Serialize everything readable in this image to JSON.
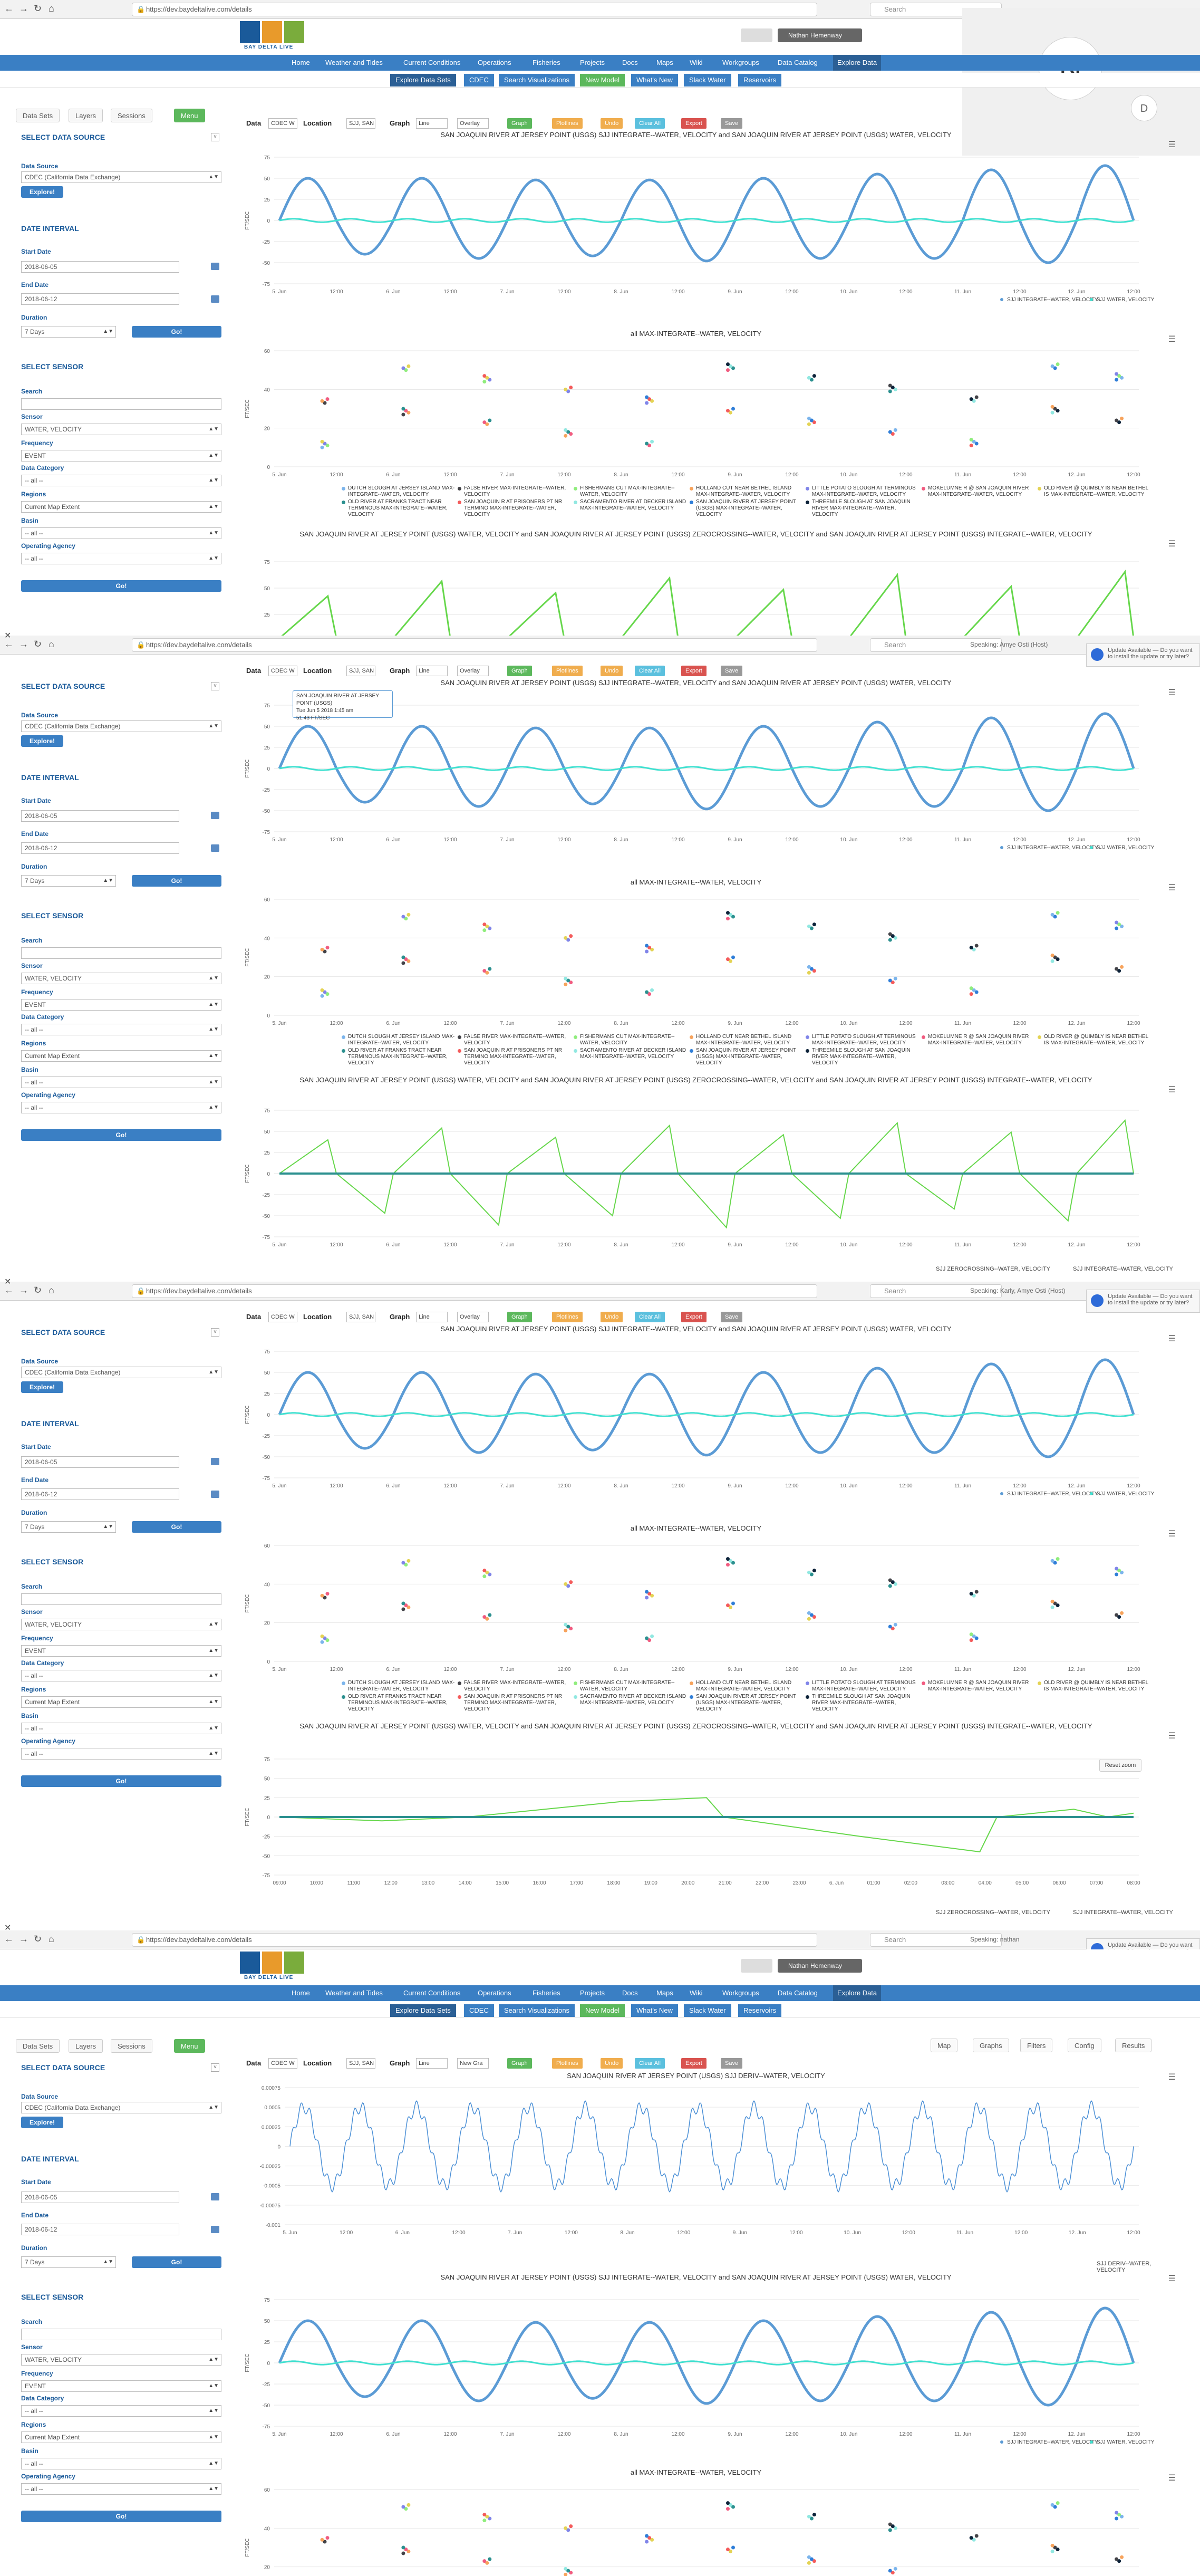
{
  "browser": {
    "url": "https://dev.baydeltalive.com/details",
    "search_placeholder": "Search",
    "speaking": [
      "",
      "Speaking: Amye Osti (Host)",
      "Speaking: Karly, Amye Osti (Host)",
      "Speaking: nathan"
    ]
  },
  "site": {
    "logo_text": "BAY DELTA LIVE",
    "user": "Nathan Hemenway",
    "nav": [
      "Home",
      "Weather and Tides",
      "Current Conditions",
      "Operations",
      "Fisheries",
      "Projects",
      "Docs",
      "Maps",
      "Wiki",
      "Workgroups",
      "Data Catalog",
      "Explore Data"
    ],
    "subnav": [
      "Explore Data Sets",
      "CDEC",
      "Search Visualizations",
      "New Model",
      "What's New",
      "Slack Water",
      "Reservoirs"
    ]
  },
  "overlay": {
    "avatar_big": "N",
    "avatar_small": "D",
    "map_label": "Map",
    "name_label": "nathan"
  },
  "notification": {
    "text": "Update Available — Do you want to install the update or try later?"
  },
  "sidebar": {
    "tabs": [
      "Data Sets",
      "Layers",
      "Sessions",
      "Menu"
    ],
    "select_data_source": "SELECT DATA SOURCE",
    "data_source_label": "Data Source",
    "data_source_value": "CDEC (California Data Exchange)",
    "explore_button": "Explore!",
    "date_interval": "DATE INTERVAL",
    "start_date_label": "Start Date",
    "start_date": "2018-06-05",
    "end_date_label": "End Date",
    "end_date": "2018-06-12",
    "duration_label": "Duration",
    "duration": "7 Days",
    "go_button": "Go!",
    "select_sensor": "SELECT SENSOR",
    "search_label": "Search",
    "sensor_label": "Sensor",
    "sensor_value": "WATER, VELOCITY",
    "frequency_label": "Frequency",
    "frequency_value": "EVENT",
    "data_category_label": "Data Category",
    "data_category_value": "-- all --",
    "regions_label": "Regions",
    "regions_value": "Current Map Extent",
    "basin_label": "Basin",
    "basin_value": "-- all --",
    "operating_agency_label": "Operating Agency",
    "operating_agency_value": "-- all --",
    "go_button2": "Go!"
  },
  "toolbar": {
    "data_label": "Data",
    "data_value": "CDEC W",
    "location_label": "Location",
    "location_value": "SJJ, SAN",
    "graph_label": "Graph",
    "graph_value": "Line",
    "overlay_value": "Overlay",
    "new_graph_value": "New Gra",
    "buttons": [
      "Graph",
      "Plotlines",
      "Undo",
      "Clear All",
      "Export",
      "Save"
    ]
  },
  "map_tabs": [
    "Map",
    "Graphs",
    "Filters",
    "Config",
    "Results"
  ],
  "charts": {
    "velocity_title": "SAN JOAQUIN RIVER AT JERSEY POINT (USGS) SJJ INTEGRATE--WATER, VELOCITY and SAN JOAQUIN RIVER AT JERSEY POINT (USGS) WATER, VELOCITY",
    "max_title": "all MAX-INTEGRATE--WATER, VELOCITY",
    "zero_title": "SAN JOAQUIN RIVER AT JERSEY POINT (USGS) WATER, VELOCITY and SAN JOAQUIN RIVER AT JERSEY POINT (USGS) ZEROCROSSING--WATER, VELOCITY and SAN JOAQUIN RIVER AT JERSEY POINT (USGS) INTEGRATE--WATER, VELOCITY",
    "deriv_title": "SAN JOAQUIN RIVER AT JERSEY POINT (USGS) SJJ DERIV--WATER, VELOCITY",
    "y_unit": "FT/SEC",
    "x_ticks": [
      "5. Jun",
      "12:00",
      "6. Jun",
      "12:00",
      "7. Jun",
      "12:00",
      "8. Jun",
      "12:00",
      "9. Jun",
      "12:00",
      "10. Jun",
      "12:00",
      "11. Jun",
      "12:00",
      "12. Jun",
      "12:00"
    ],
    "zoom_x_ticks": [
      "09:00",
      "10:00",
      "11:00",
      "12:00",
      "13:00",
      "14:00",
      "15:00",
      "16:00",
      "17:00",
      "18:00",
      "19:00",
      "20:00",
      "21:00",
      "22:00",
      "23:00",
      "6. Jun",
      "01:00",
      "02:00",
      "03:00",
      "04:00",
      "05:00",
      "06:00",
      "07:00",
      "08:00"
    ],
    "velocity_y_ticks": [
      "75",
      "50",
      "25",
      "0",
      "-25",
      "-50",
      "-75"
    ],
    "max_y_ticks": [
      "60",
      "40",
      "20",
      "0"
    ],
    "deriv_y_ticks": [
      "0.00075",
      "0.0005",
      "0.00025",
      "0",
      "-0.00025",
      "-0.0005",
      "-0.00075",
      "-0.001"
    ],
    "legend_sj_integrate": "SJJ INTEGRATE--WATER, VELOCITY",
    "legend_sj_velocity": "SJJ WATER, VELOCITY",
    "legend_sj_zero": "SJJ ZEROCROSSING--WATER, VELOCITY",
    "legend_sj_deriv": "SJJ DERIV--WATER, VELOCITY",
    "tooltip_title": "SAN JOAQUIN RIVER AT JERSEY POINT (USGS)",
    "tooltip_date": "Tue Jun 5 2018 1:45 am",
    "tooltip_value": "51.43 FT/SEC",
    "reset_zoom": "Reset zoom",
    "max_legend": [
      {
        "name": "DUTCH SLOUGH AT JERSEY ISLAND MAX-INTEGRATE--WATER, VELOCITY",
        "color": "#7cb5ec"
      },
      {
        "name": "FALSE RIVER MAX-INTEGRATE--WATER, VELOCITY",
        "color": "#434348"
      },
      {
        "name": "FISHERMANS CUT MAX-INTEGRATE--WATER, VELOCITY",
        "color": "#90ed7d"
      },
      {
        "name": "HOLLAND CUT NEAR BETHEL ISLAND MAX-INTEGRATE--WATER, VELOCITY",
        "color": "#f7a35c"
      },
      {
        "name": "LITTLE POTATO SLOUGH AT TERMINOUS MAX-INTEGRATE--WATER, VELOCITY",
        "color": "#8085e9"
      },
      {
        "name": "MOKELUMNE R @ SAN JOAQUIN RIVER MAX-INTEGRATE--WATER, VELOCITY",
        "color": "#f15c80"
      },
      {
        "name": "OLD RIVER @ QUIMBLY IS NEAR BETHEL IS MAX-INTEGRATE--WATER, VELOCITY",
        "color": "#e4d354"
      },
      {
        "name": "OLD RIVER AT FRANKS TRACT NEAR TERMINOUS MAX-INTEGRATE--WATER, VELOCITY",
        "color": "#2b908f"
      },
      {
        "name": "SAN JOAQUIN R AT PRISONERS PT NR TERMINO MAX-INTEGRATE--WATER, VELOCITY",
        "color": "#f45b5b"
      },
      {
        "name": "SACRAMENTO RIVER AT DECKER ISLAND MAX-INTEGRATE--WATER, VELOCITY",
        "color": "#91e8e1"
      },
      {
        "name": "SAN JOAQUIN RIVER AT JERSEY POINT (USGS) MAX-INTEGRATE--WATER, VELOCITY",
        "color": "#2f7ed8"
      },
      {
        "name": "THREEMILE SLOUGH AT SAN JOAQUIN RIVER MAX-INTEGRATE--WATER, VELOCITY",
        "color": "#0d233a"
      }
    ]
  },
  "chart_data": {
    "type": "line",
    "title": "SAN JOAQUIN RIVER AT JERSEY POINT (USGS) SJJ INTEGRATE--WATER, VELOCITY and SAN JOAQUIN RIVER AT JERSEY POINT (USGS) WATER, VELOCITY",
    "ylabel": "FT/SEC",
    "ylim": [
      -75,
      75
    ],
    "x": [
      "5. Jun",
      "6. Jun",
      "7. Jun",
      "8. Jun",
      "9. Jun",
      "10. Jun",
      "11. Jun",
      "12. Jun"
    ],
    "series": [
      {
        "name": "SJJ INTEGRATE--WATER, VELOCITY",
        "color": "#5b9bd5",
        "peaks": [
          50,
          -40,
          50,
          -45,
          48,
          -42,
          48,
          -48,
          50,
          -45,
          55,
          -45,
          60,
          -50,
          65
        ]
      },
      {
        "name": "SJJ WATER, VELOCITY",
        "color": "#40e0d0",
        "amplitude": 2
      }
    ]
  }
}
